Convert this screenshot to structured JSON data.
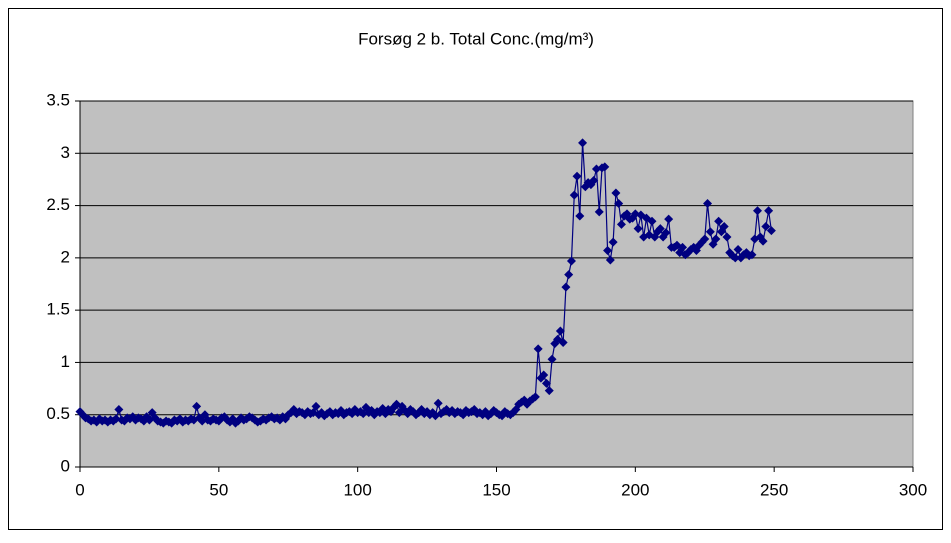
{
  "chart_data": {
    "type": "line",
    "title": "Forsøg 2 b. Total Conc.(mg/m³)",
    "x": [
      0,
      1,
      2,
      3,
      4,
      5,
      6,
      7,
      8,
      9,
      10,
      11,
      12,
      13,
      14,
      15,
      16,
      17,
      18,
      19,
      20,
      21,
      22,
      23,
      24,
      25,
      26,
      27,
      28,
      29,
      30,
      31,
      32,
      33,
      34,
      35,
      36,
      37,
      38,
      39,
      40,
      41,
      42,
      43,
      44,
      45,
      46,
      47,
      48,
      49,
      50,
      51,
      52,
      53,
      54,
      55,
      56,
      57,
      58,
      59,
      60,
      61,
      62,
      63,
      64,
      65,
      66,
      67,
      68,
      69,
      70,
      71,
      72,
      73,
      74,
      75,
      76,
      77,
      78,
      79,
      80,
      81,
      82,
      83,
      84,
      85,
      86,
      87,
      88,
      89,
      90,
      91,
      92,
      93,
      94,
      95,
      96,
      97,
      98,
      99,
      100,
      101,
      102,
      103,
      104,
      105,
      106,
      107,
      108,
      109,
      110,
      111,
      112,
      113,
      114,
      115,
      116,
      117,
      118,
      119,
      120,
      121,
      122,
      123,
      124,
      125,
      126,
      127,
      128,
      129,
      130,
      131,
      132,
      133,
      134,
      135,
      136,
      137,
      138,
      139,
      140,
      141,
      142,
      143,
      144,
      145,
      146,
      147,
      148,
      149,
      150,
      151,
      152,
      153,
      154,
      155,
      156,
      157,
      158,
      159,
      160,
      161,
      162,
      163,
      164,
      165,
      166,
      167,
      168,
      169,
      170,
      171,
      172,
      173,
      174,
      175,
      176,
      177,
      178,
      179,
      180,
      181,
      182,
      183,
      184,
      185,
      186,
      187,
      188,
      189,
      190,
      191,
      192,
      193,
      194,
      195,
      196,
      197,
      198,
      199,
      200,
      201,
      202,
      203,
      204,
      205,
      206,
      207,
      208,
      209,
      210,
      211,
      212,
      213,
      214,
      215,
      216,
      217,
      218,
      219,
      220,
      221,
      222,
      223,
      224,
      225,
      226,
      227,
      228,
      229,
      230,
      231,
      232,
      233,
      234,
      235,
      236,
      237,
      238,
      239,
      240,
      241,
      242,
      243,
      244,
      245,
      246,
      247,
      248,
      249
    ],
    "series": [
      {
        "name": "Total Conc.",
        "color": "#000080",
        "values": [
          0.53,
          0.5,
          0.47,
          0.46,
          0.44,
          0.45,
          0.43,
          0.46,
          0.44,
          0.45,
          0.43,
          0.45,
          0.44,
          0.46,
          0.55,
          0.45,
          0.44,
          0.47,
          0.46,
          0.48,
          0.45,
          0.47,
          0.46,
          0.44,
          0.48,
          0.45,
          0.52,
          0.47,
          0.44,
          0.43,
          0.42,
          0.44,
          0.43,
          0.42,
          0.45,
          0.44,
          0.46,
          0.43,
          0.45,
          0.44,
          0.46,
          0.45,
          0.58,
          0.47,
          0.44,
          0.5,
          0.45,
          0.44,
          0.46,
          0.45,
          0.44,
          0.47,
          0.48,
          0.45,
          0.43,
          0.46,
          0.42,
          0.44,
          0.47,
          0.45,
          0.46,
          0.48,
          0.47,
          0.45,
          0.43,
          0.44,
          0.46,
          0.45,
          0.47,
          0.48,
          0.46,
          0.47,
          0.45,
          0.48,
          0.46,
          0.5,
          0.52,
          0.55,
          0.51,
          0.53,
          0.52,
          0.5,
          0.53,
          0.51,
          0.52,
          0.58,
          0.5,
          0.52,
          0.49,
          0.51,
          0.53,
          0.5,
          0.52,
          0.51,
          0.54,
          0.5,
          0.52,
          0.53,
          0.51,
          0.55,
          0.52,
          0.53,
          0.51,
          0.57,
          0.52,
          0.54,
          0.5,
          0.53,
          0.52,
          0.56,
          0.51,
          0.55,
          0.53,
          0.57,
          0.6,
          0.52,
          0.58,
          0.54,
          0.51,
          0.55,
          0.53,
          0.5,
          0.52,
          0.55,
          0.51,
          0.53,
          0.5,
          0.52,
          0.49,
          0.61,
          0.51,
          0.53,
          0.55,
          0.52,
          0.54,
          0.51,
          0.53,
          0.52,
          0.5,
          0.54,
          0.52,
          0.53,
          0.55,
          0.51,
          0.52,
          0.5,
          0.53,
          0.49,
          0.51,
          0.54,
          0.52,
          0.5,
          0.49,
          0.53,
          0.51,
          0.5,
          0.52,
          0.55,
          0.6,
          0.62,
          0.64,
          0.6,
          0.63,
          0.65,
          0.67,
          1.13,
          0.85,
          0.88,
          0.8,
          0.73,
          1.03,
          1.18,
          1.22,
          1.3,
          1.19,
          1.72,
          1.84,
          1.97,
          2.6,
          2.78,
          2.4,
          3.1,
          2.68,
          2.72,
          2.7,
          2.74,
          2.85,
          2.44,
          2.86,
          2.87,
          2.07,
          1.98,
          2.15,
          2.62,
          2.52,
          2.32,
          2.4,
          2.42,
          2.37,
          2.38,
          2.42,
          2.28,
          2.41,
          2.2,
          2.38,
          2.22,
          2.35,
          2.2,
          2.25,
          2.28,
          2.2,
          2.24,
          2.37,
          2.1,
          2.1,
          2.12,
          2.05,
          2.1,
          2.03,
          2.05,
          2.08,
          2.1,
          2.07,
          2.12,
          2.15,
          2.18,
          2.52,
          2.25,
          2.13,
          2.18,
          2.35,
          2.25,
          2.3,
          2.2,
          2.05,
          2.02,
          2.0,
          2.08,
          2.0,
          2.03,
          2.05,
          2.02,
          2.03,
          2.18,
          2.45,
          2.2,
          2.16,
          2.3,
          2.45,
          2.26
        ]
      }
    ],
    "xlim": [
      0,
      300
    ],
    "xticks": [
      0,
      50,
      100,
      150,
      200,
      250,
      300
    ],
    "ylim": [
      0,
      3.5
    ],
    "yticks": [
      0,
      0.5,
      1,
      1.5,
      2,
      2.5,
      3,
      3.5
    ],
    "grid": true,
    "plot_background": "#c0c0c0"
  }
}
